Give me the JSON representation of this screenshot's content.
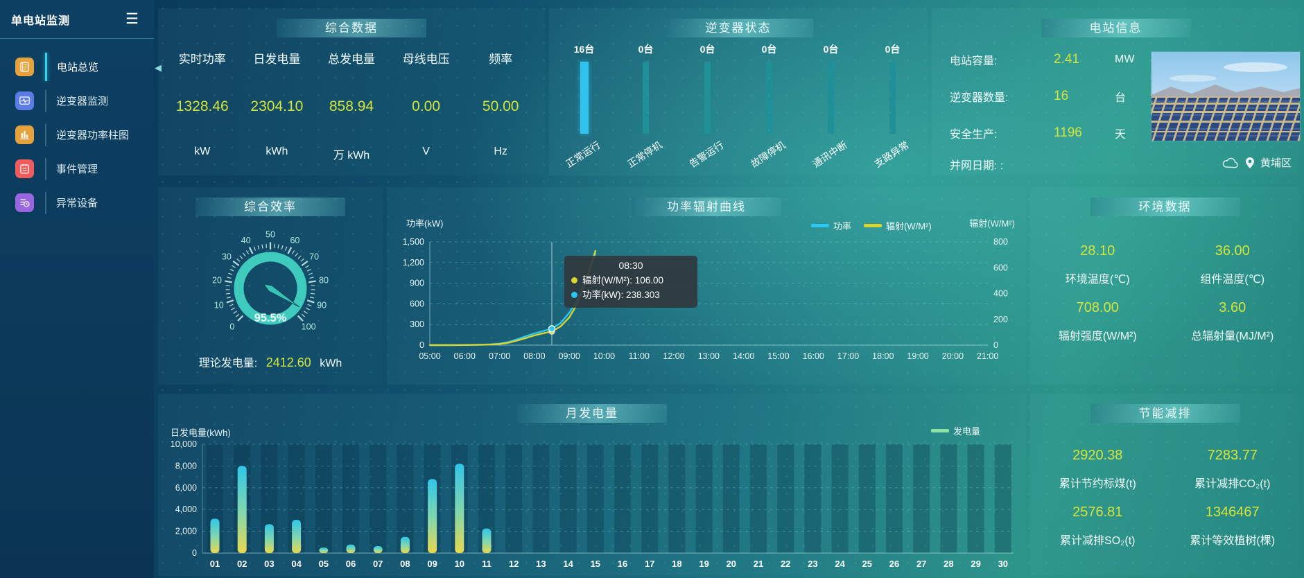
{
  "app": {
    "title": "单电站监测"
  },
  "ui": {
    "hamburger_glyph": "☰",
    "collapse_glyph": "◀"
  },
  "colors": {
    "accent_value": "#d3e53b",
    "power_line": "#2ec7f0",
    "radiation_line": "#d8d432",
    "inverter_bar_active": "#2fc4f0",
    "inverter_bar_idle": "#1f9097",
    "gauge": "#3fcabe",
    "bar_gradient_top": "#30c6e9",
    "bar_gradient_mid": "#86d7ab",
    "bar_gradient_bottom": "#e9d84e",
    "energy_legend": "#8fe3a8"
  },
  "sidebar": {
    "items": [
      {
        "label": "电站总览",
        "icon": "overview",
        "color": "#e6a23c",
        "active": true
      },
      {
        "label": "逆变器监测",
        "icon": "monitor",
        "color": "#5b7ce6",
        "active": false
      },
      {
        "label": "逆变器功率柱图",
        "icon": "bars",
        "color": "#e6a23c",
        "active": false
      },
      {
        "label": "事件管理",
        "icon": "note",
        "color": "#f25b5b",
        "active": false
      },
      {
        "label": "异常设备",
        "icon": "abnormal",
        "color": "#9a66e0",
        "active": false
      }
    ]
  },
  "summary_panel": {
    "title": "综合数据",
    "metrics": [
      {
        "label": "实时功率",
        "value": "1328.46",
        "unit": "kW"
      },
      {
        "label": "日发电量",
        "value": "2304.10",
        "unit": "kWh"
      },
      {
        "label": "总发电量",
        "value": "858.94",
        "unit": "万 kWh"
      },
      {
        "label": "母线电压",
        "value": "0.00",
        "unit": "V"
      },
      {
        "label": "频率",
        "value": "50.00",
        "unit": "Hz"
      }
    ]
  },
  "inverter_status": {
    "title": "逆变器状态",
    "items": [
      {
        "count": "16台",
        "label": "正常运行",
        "active": true
      },
      {
        "count": "0台",
        "label": "正常停机",
        "active": false
      },
      {
        "count": "0台",
        "label": "告警运行",
        "active": false
      },
      {
        "count": "0台",
        "label": "故障停机",
        "active": false
      },
      {
        "count": "0台",
        "label": "通讯中断",
        "active": false
      },
      {
        "count": "0台",
        "label": "支路异常",
        "active": false
      }
    ]
  },
  "station_info": {
    "title": "电站信息",
    "rows": [
      {
        "label": "电站容量:",
        "value": "2.41",
        "unit": "MW"
      },
      {
        "label": "逆变器数量:",
        "value": "16",
        "unit": "台"
      },
      {
        "label": "安全生产:",
        "value": "1196",
        "unit": "天"
      },
      {
        "label": "并网日期: :",
        "value": "",
        "unit": ""
      }
    ],
    "location": "黄埔区"
  },
  "efficiency": {
    "theory_label": "理论发电量:",
    "theory_value": "2412.60",
    "theory_unit": "kWh"
  },
  "environment": {
    "title": "环境数据",
    "cells": [
      {
        "value": "28.10",
        "label": "环境温度(℃)"
      },
      {
        "value": "36.00",
        "label": "组件温度(℃)"
      },
      {
        "value": "708.00",
        "label": "辐射强度(W/M²)"
      },
      {
        "value": "3.60",
        "label": "总辐射量(MJ/M²)"
      }
    ]
  },
  "savings": {
    "title": "节能减排",
    "cells": [
      {
        "value": "2920.38",
        "label": "累计节约标煤(t)"
      },
      {
        "value": "7283.77",
        "label": "累计减排CO₂(t)"
      },
      {
        "value": "2576.81",
        "label": "累计减排SO₂(t)"
      },
      {
        "value": "1346467",
        "label": "累计等效植树(棵)"
      }
    ]
  },
  "chart_data": [
    {
      "id": "efficiency_gauge",
      "type": "gauge",
      "title": "综合效率",
      "value": 95.5,
      "value_label": "95.5%",
      "min": 0,
      "max": 100,
      "tick_labels": [
        0,
        10,
        20,
        30,
        40,
        50,
        60,
        70,
        80,
        90,
        100
      ]
    },
    {
      "id": "power_radiation_curve",
      "type": "line",
      "title": "功率辐射曲线",
      "ylabel_left": "功率(kW)",
      "ylabel_right": "辐射(W/M²)",
      "ylim_left": [
        0,
        1500
      ],
      "yticks_left": [
        "0",
        "300",
        "600",
        "900",
        "1,200",
        "1,500"
      ],
      "ylim_right": [
        0,
        800
      ],
      "yticks_right": [
        "0",
        "200",
        "400",
        "600",
        "800"
      ],
      "x_ticks": [
        "05:00",
        "06:00",
        "07:00",
        "08:00",
        "09:00",
        "10:00",
        "11:00",
        "12:00",
        "13:00",
        "14:00",
        "15:00",
        "16:00",
        "17:00",
        "18:00",
        "19:00",
        "20:00",
        "21:00"
      ],
      "legend": [
        {
          "label": "功率",
          "color": "#2ec7f0"
        },
        {
          "label": "辐射(W/M²)",
          "color": "#d8d432"
        }
      ],
      "series": [
        {
          "name": "功率",
          "axis": "left",
          "color": "#2ec7f0",
          "x": [
            5,
            5.5,
            6,
            6.25,
            6.5,
            6.75,
            7,
            7.25,
            7.5,
            7.75,
            8,
            8.25,
            8.5,
            8.75,
            9,
            9.25,
            9.5,
            9.75
          ],
          "y": [
            0,
            1,
            2,
            4,
            7,
            12,
            22,
            45,
            85,
            130,
            170,
            205,
            238.3,
            320,
            470,
            680,
            990,
            1330
          ]
        },
        {
          "name": "辐射(W/M²)",
          "axis": "right",
          "color": "#d8d432",
          "x": [
            5,
            5.5,
            6,
            6.25,
            6.5,
            6.75,
            7,
            7.25,
            7.5,
            7.75,
            8,
            8.25,
            8.5,
            8.75,
            9,
            9.25,
            9.5,
            9.75
          ],
          "y": [
            0,
            0,
            1,
            2,
            3,
            5,
            9,
            18,
            35,
            55,
            75,
            92,
            106,
            145,
            215,
            330,
            510,
            730
          ]
        }
      ],
      "tooltip": {
        "time": "08:30",
        "x_hours": 8.5,
        "rows": [
          {
            "name": "辐射(W/M²)",
            "value": "106.00",
            "color": "#d8d432"
          },
          {
            "name": "功率(kW)",
            "value": "238.303",
            "color": "#2ec7f0"
          }
        ]
      }
    },
    {
      "id": "monthly_generation",
      "type": "bar",
      "title": "月发电量",
      "ylabel": "日发电量(kWh)",
      "legend_label": "发电量",
      "ylim": [
        0,
        10000
      ],
      "yticks": [
        "0",
        "2,000",
        "4,000",
        "6,000",
        "8,000",
        "10,000"
      ],
      "categories": [
        "01",
        "02",
        "03",
        "04",
        "05",
        "06",
        "07",
        "08",
        "09",
        "10",
        "11",
        "12",
        "13",
        "14",
        "15",
        "16",
        "17",
        "18",
        "19",
        "20",
        "21",
        "22",
        "23",
        "24",
        "25",
        "26",
        "27",
        "28",
        "29",
        "30"
      ],
      "values": [
        3150,
        8000,
        2650,
        3050,
        500,
        780,
        640,
        1480,
        6800,
        8200,
        2250,
        0,
        0,
        0,
        0,
        0,
        0,
        0,
        0,
        0,
        0,
        0,
        0,
        0,
        0,
        0,
        0,
        0,
        0,
        0
      ]
    }
  ]
}
